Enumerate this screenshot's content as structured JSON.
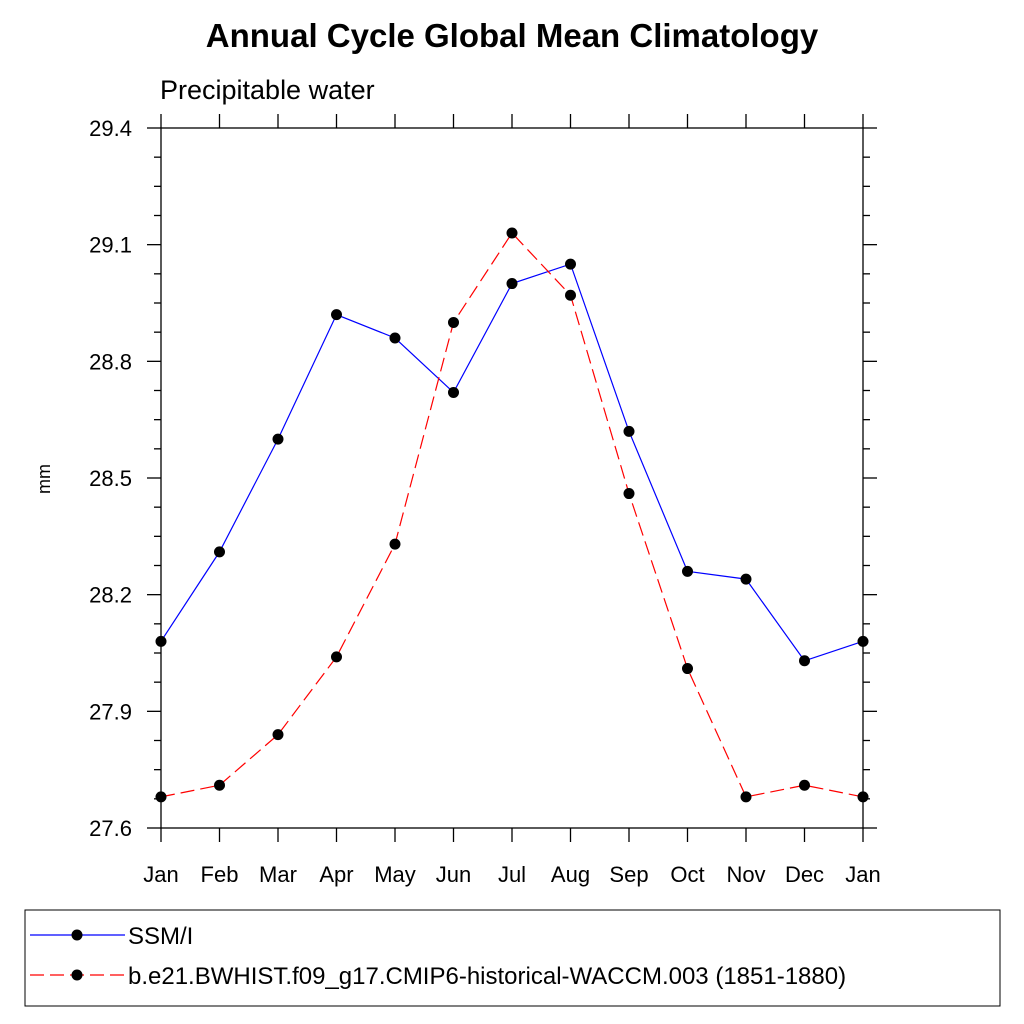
{
  "chart_data": {
    "type": "line",
    "title": "Annual Cycle Global Mean Climatology",
    "subtitle": "Precipitable water",
    "xlabel": "",
    "ylabel": "mm",
    "categories": [
      "Jan",
      "Feb",
      "Mar",
      "Apr",
      "May",
      "Jun",
      "Jul",
      "Aug",
      "Sep",
      "Oct",
      "Nov",
      "Dec",
      "Jan"
    ],
    "ylim": [
      27.6,
      29.4
    ],
    "yticks": [
      27.6,
      27.9,
      28.2,
      28.5,
      28.8,
      29.1,
      29.4
    ],
    "ytick_labels": [
      "27.6",
      "27.9",
      "28.2",
      "28.5",
      "28.8",
      "29.1",
      "29.4"
    ],
    "grid": false,
    "legend_position": "bottom",
    "series": [
      {
        "name": "SSM/I",
        "color": "#0000ff",
        "dashed": false,
        "values": [
          28.08,
          28.31,
          28.6,
          28.92,
          28.86,
          28.72,
          29.0,
          29.05,
          28.62,
          28.26,
          28.24,
          28.03,
          28.08
        ]
      },
      {
        "name": "b.e21.BWHIST.f09_g17.CMIP6-historical-WACCM.003 (1851-1880)",
        "color": "#ff0000",
        "dashed": true,
        "values": [
          27.68,
          27.71,
          27.84,
          28.04,
          28.33,
          28.9,
          29.13,
          28.97,
          28.46,
          28.01,
          27.68,
          27.71,
          27.68
        ]
      }
    ]
  }
}
